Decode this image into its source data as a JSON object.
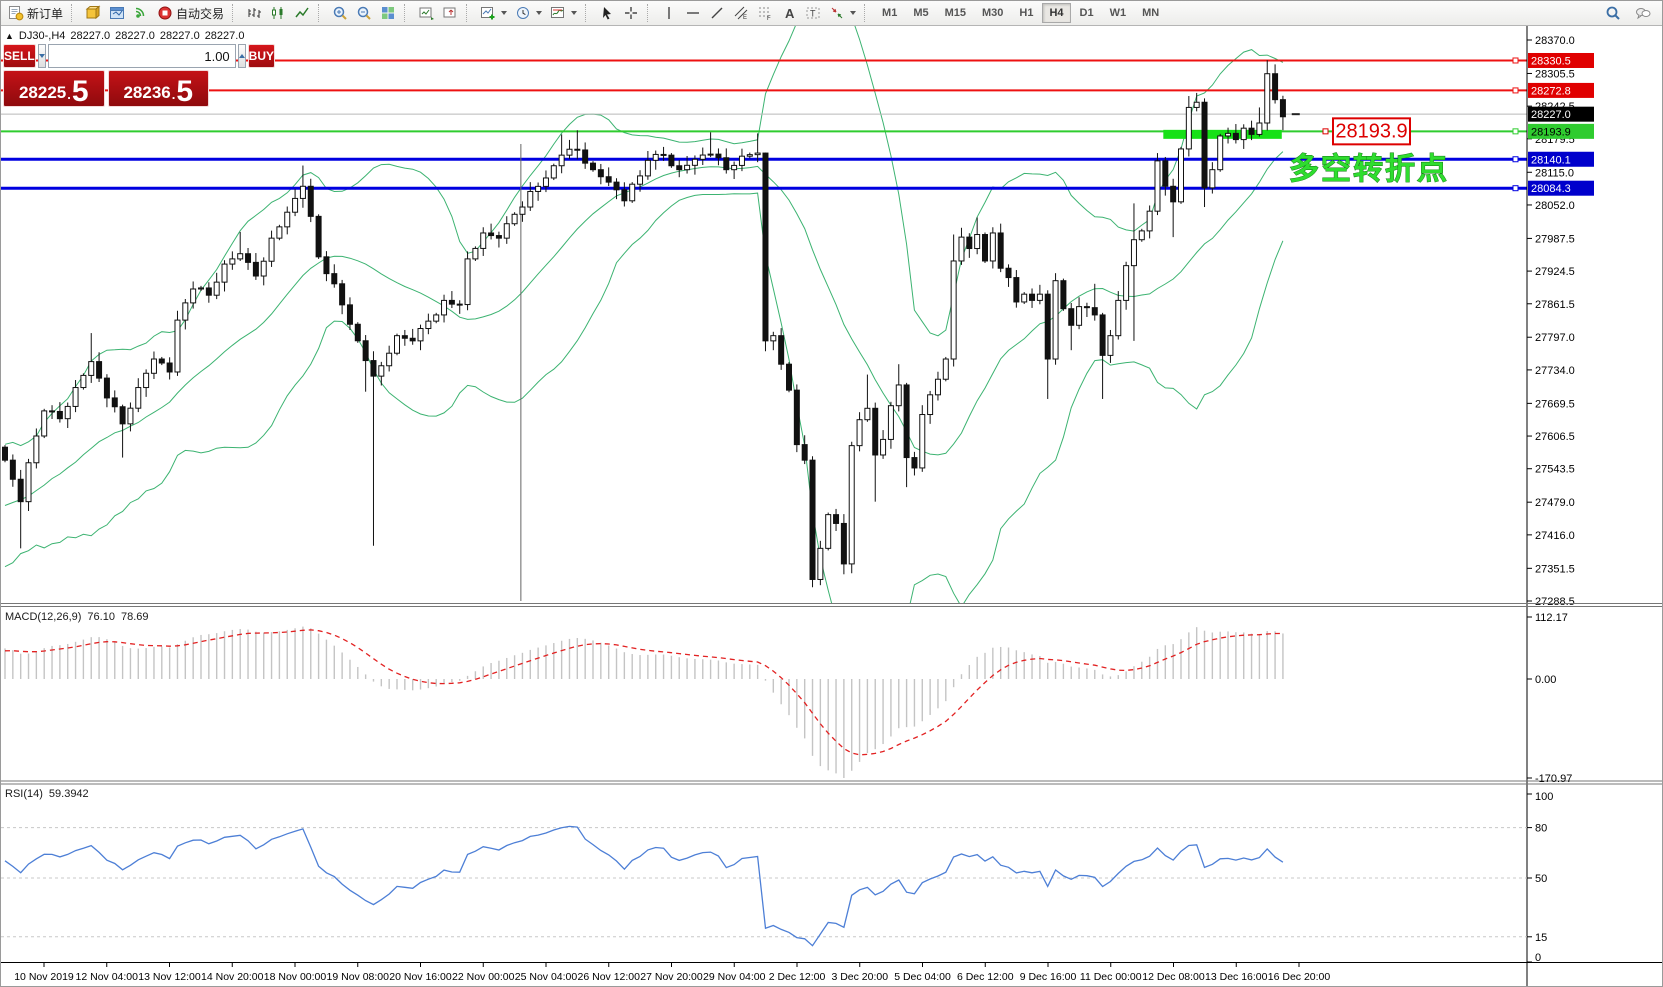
{
  "toolbar": {
    "groups": [
      {
        "items": [
          {
            "icon": "new-order",
            "label": "新订单"
          }
        ]
      },
      {
        "items": [
          {
            "icon": "profile-cube"
          },
          {
            "icon": "window-blue"
          },
          {
            "icon": "signal"
          },
          {
            "icon": "auto-trading",
            "label": "自动交易"
          }
        ]
      },
      {
        "items": [
          {
            "icon": "chart-bars"
          },
          {
            "icon": "chart-candles"
          },
          {
            "icon": "chart-line"
          }
        ]
      },
      {
        "items": [
          {
            "icon": "zoom-in"
          },
          {
            "icon": "zoom-out"
          },
          {
            "icon": "tile-windows"
          }
        ]
      },
      {
        "items": [
          {
            "icon": "arrange-auto"
          },
          {
            "icon": "chart-shift"
          }
        ]
      },
      {
        "items": [
          {
            "icon": "indicators-add",
            "caret": true
          },
          {
            "icon": "periods-clock",
            "caret": true
          },
          {
            "icon": "templates",
            "caret": true
          }
        ]
      },
      {
        "items": [
          {
            "icon": "cursor"
          },
          {
            "icon": "crosshair"
          }
        ]
      },
      {
        "items": [
          {
            "icon": "vline"
          },
          {
            "icon": "hline"
          },
          {
            "icon": "trendline"
          },
          {
            "icon": "channel"
          },
          {
            "icon": "fibonacci"
          },
          {
            "icon": "text-a"
          },
          {
            "icon": "text-label"
          },
          {
            "icon": "arrows",
            "caret": true
          }
        ]
      }
    ],
    "timeframes": [
      "M1",
      "M5",
      "M15",
      "M30",
      "H1",
      "H4",
      "D1",
      "W1",
      "MN"
    ],
    "active_timeframe": "H4",
    "right_icons": [
      "search",
      "chat"
    ]
  },
  "one_click": {
    "sell_label": "SELL",
    "buy_label": "BUY",
    "volume": "1.00",
    "sell_price_int": "28225",
    "sell_price_dec": ".",
    "sell_price_big": "5",
    "buy_price_int": "28236",
    "buy_price_dec": ".",
    "buy_price_big": "5"
  },
  "chart_header": {
    "symbol_period": "DJ30-,H4",
    "open": "28227.0",
    "high": "28227.0",
    "low": "28227.0",
    "close": "28227.0"
  },
  "annotations": {
    "price_flag": "28193.9",
    "price_flag_color": "#dd0000",
    "turning_point": "多空转折点",
    "turning_point_color": "#2fdd2f"
  },
  "chart_data": {
    "type": "candlestick",
    "symbol": "DJ30-",
    "timeframe": "H4",
    "last_price": 28227.0,
    "price_range": {
      "top": 28370.0,
      "bottom": 27288.5
    },
    "price_axis_ticks": [
      28370.0,
      28305.5,
      28242.5,
      28179.5,
      28115.0,
      28052.0,
      27987.5,
      27924.5,
      27861.5,
      27797.0,
      27734.0,
      27669.5,
      27606.5,
      27543.5,
      27479.0,
      27416.0,
      27351.5,
      27288.5
    ],
    "bar_count": 164,
    "first_open": 27585,
    "warmup": {
      "bars": 30,
      "start": 27280,
      "zigzag": 25
    },
    "bull_color": "#ffffff",
    "bear_color": "#111111",
    "wick_color": "#111111",
    "keyframes": [
      [
        0,
        27560
      ],
      [
        2,
        27480,
        null,
        27390
      ],
      [
        3,
        27555
      ],
      [
        5,
        27655
      ],
      [
        7,
        27640
      ],
      [
        9,
        27700
      ],
      [
        11,
        27750,
        27805,
        null
      ],
      [
        13,
        27680
      ],
      [
        15,
        27630,
        null,
        27565
      ],
      [
        17,
        27700
      ],
      [
        19,
        27755
      ],
      [
        21,
        27730
      ],
      [
        22,
        27830
      ],
      [
        24,
        27890
      ],
      [
        26,
        27878
      ],
      [
        28,
        27938
      ],
      [
        30,
        27958,
        28000,
        null
      ],
      [
        32,
        27915
      ],
      [
        34,
        27988
      ],
      [
        36,
        28038
      ],
      [
        38,
        28088,
        28128,
        null
      ],
      [
        39,
        28030
      ],
      [
        40,
        27952
      ],
      [
        42,
        27900
      ],
      [
        44,
        27822
      ],
      [
        46,
        27752,
        null,
        27692
      ],
      [
        47,
        27722,
        null,
        27395
      ],
      [
        48,
        27742
      ],
      [
        50,
        27800
      ],
      [
        52,
        27790
      ],
      [
        54,
        27828
      ],
      [
        56,
        27868
      ],
      [
        58,
        27860
      ],
      [
        59,
        27948
      ],
      [
        61,
        27998
      ],
      [
        63,
        27988
      ],
      [
        65,
        28034
      ],
      [
        67,
        28078
      ],
      [
        69,
        28104
      ],
      [
        71,
        28148,
        28188,
        null
      ],
      [
        73,
        28158,
        28196,
        null
      ],
      [
        75,
        28120
      ],
      [
        77,
        28096
      ],
      [
        79,
        28060
      ],
      [
        81,
        28108
      ],
      [
        82,
        28138
      ],
      [
        84,
        28148
      ],
      [
        86,
        28120
      ],
      [
        88,
        28140
      ],
      [
        90,
        28150,
        28192,
        null
      ],
      [
        92,
        28120
      ],
      [
        94,
        28146
      ],
      [
        96,
        28152,
        28190,
        null
      ],
      [
        97,
        27790,
        28100,
        27770
      ],
      [
        98,
        27800
      ],
      [
        99,
        27745
      ],
      [
        100,
        27695
      ],
      [
        101,
        27590
      ],
      [
        102,
        27560
      ],
      [
        103,
        27330,
        null,
        27315
      ],
      [
        104,
        27390
      ],
      [
        105,
        27455
      ],
      [
        106,
        27438
      ],
      [
        107,
        27360,
        null,
        27340
      ],
      [
        108,
        27588
      ],
      [
        109,
        27638
      ],
      [
        110,
        27660,
        27725,
        null
      ],
      [
        111,
        27570,
        null,
        27480
      ],
      [
        112,
        27600
      ],
      [
        113,
        27665
      ],
      [
        114,
        27705,
        27745,
        null
      ],
      [
        115,
        27565,
        null,
        27508
      ],
      [
        116,
        27545
      ],
      [
        117,
        27648
      ],
      [
        118,
        27686
      ],
      [
        119,
        27716
      ],
      [
        120,
        27755
      ],
      [
        121,
        27944,
        27995,
        null
      ],
      [
        122,
        27990
      ],
      [
        123,
        27968
      ],
      [
        124,
        27995,
        28028,
        null
      ],
      [
        125,
        27944
      ],
      [
        126,
        27998
      ],
      [
        127,
        27930
      ],
      [
        128,
        27912
      ],
      [
        129,
        27865
      ],
      [
        130,
        27880
      ],
      [
        131,
        27868
      ],
      [
        132,
        27880
      ],
      [
        133,
        27755,
        null,
        27678
      ],
      [
        134,
        27906
      ],
      [
        135,
        27852
      ],
      [
        136,
        27820,
        null,
        27772
      ],
      [
        137,
        27856
      ],
      [
        138,
        27854
      ],
      [
        139,
        27840,
        27900,
        null
      ],
      [
        140,
        27762,
        null,
        27678
      ],
      [
        141,
        27800
      ],
      [
        142,
        27868
      ],
      [
        143,
        27935
      ],
      [
        144,
        27985,
        28055,
        27790
      ],
      [
        145,
        28002
      ],
      [
        146,
        28040
      ],
      [
        147,
        28137,
        28152,
        null
      ],
      [
        148,
        28088
      ],
      [
        149,
        28058,
        null,
        27990
      ],
      [
        150,
        28160
      ],
      [
        151,
        28240,
        28262,
        null
      ],
      [
        152,
        28250
      ],
      [
        153,
        28085,
        null,
        28048
      ],
      [
        154,
        28120
      ],
      [
        155,
        28185
      ],
      [
        156,
        28190
      ],
      [
        157,
        28178
      ],
      [
        158,
        28200
      ],
      [
        159,
        28188
      ],
      [
        160,
        28210,
        28240,
        null
      ],
      [
        161,
        28305,
        28331,
        null
      ],
      [
        162,
        28255
      ],
      [
        163,
        28222,
        null,
        28196
      ]
    ],
    "bollinger": {
      "period": 20,
      "deviation": 2,
      "color": "#3cb371"
    },
    "hlines": [
      {
        "price": 28330.5,
        "color": "#ee1111",
        "width": 2,
        "label": "28330.5",
        "label_bg": "#e00000",
        "label_fg": "#ffffff"
      },
      {
        "price": 28272.8,
        "color": "#ee1111",
        "width": 2,
        "label": "28272.8",
        "label_bg": "#e00000",
        "label_fg": "#ffffff"
      },
      {
        "price": 28193.9,
        "color": "#2fcc2f",
        "width": 2,
        "label": "28193.9",
        "label_bg": "#2fcc2f",
        "label_fg": "#000000"
      },
      {
        "price": 28140.1,
        "color": "#0000e0",
        "width": 3,
        "label": "28140.1",
        "label_bg": "#0000cc",
        "label_fg": "#ffffff"
      },
      {
        "price": 28084.3,
        "color": "#0000e0",
        "width": 3,
        "label": "28084.3",
        "label_bg": "#0000cc",
        "label_fg": "#ffffff"
      }
    ],
    "current_price_line": {
      "price": 28227.0,
      "color": "#b9b9b9",
      "label": "28227.0",
      "label_bg": "#000000",
      "label_fg": "#ffffff"
    },
    "zone_highlight": {
      "price": 28193.9,
      "bar_from": 148,
      "bar_to": 162.6,
      "thickness": 9,
      "color": "#17e117"
    },
    "vline_bar": 65.8,
    "time_labels": [
      "10 Nov 2019",
      "12 Nov 04:00",
      "13 Nov 12:00",
      "14 Nov 20:00",
      "18 Nov 00:00",
      "19 Nov 08:00",
      "20 Nov 16:00",
      "22 Nov 00:00",
      "25 Nov 04:00",
      "26 Nov 12:00",
      "27 Nov 20:00",
      "29 Nov 04:00",
      "2 Dec 12:00",
      "3 Dec 20:00",
      "5 Dec 04:00",
      "6 Dec 12:00",
      "9 Dec 16:00",
      "11 Dec 00:00",
      "12 Dec 08:00",
      "13 Dec 16:00",
      "16 Dec 20:00"
    ],
    "macd": {
      "label": "MACD(12,26,9)",
      "value_main": "76.10",
      "value_signal": "78.69",
      "axis_labels": [
        "112.17",
        "0.00",
        "-170.97"
      ],
      "hist_color": "#c4c4c4",
      "signal_color": "#e22222"
    },
    "rsi": {
      "label": "RSI(14)",
      "value": "59.3942",
      "axis_labels": [
        100,
        80,
        50,
        15,
        0
      ],
      "levels": [
        80,
        50,
        15
      ],
      "color": "#4d7fd6"
    }
  }
}
